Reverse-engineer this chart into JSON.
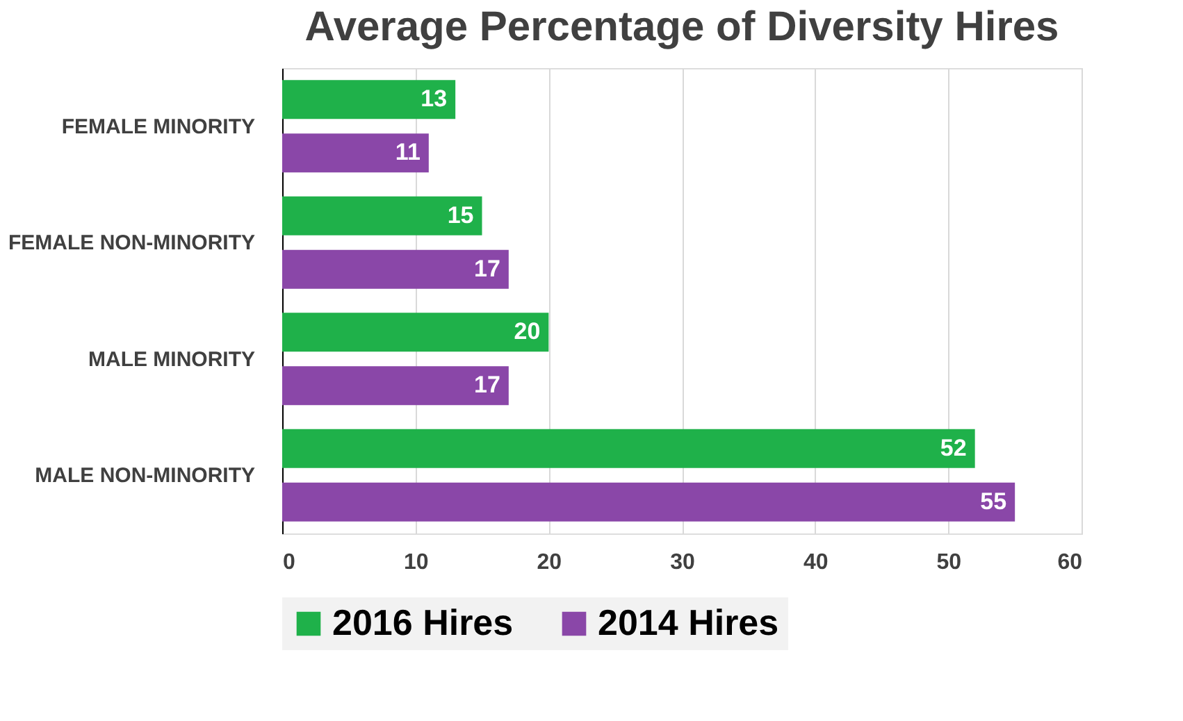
{
  "chart_data": {
    "type": "bar",
    "orientation": "horizontal",
    "title": "Average Percentage of Diversity Hires",
    "categories": [
      "FEMALE MINORITY",
      "FEMALE NON-MINORITY",
      "MALE MINORITY",
      "MALE NON-MINORITY"
    ],
    "series": [
      {
        "name": "2016 Hires",
        "color": "#1fb14a",
        "values": [
          13,
          15,
          20,
          52
        ]
      },
      {
        "name": "2014 Hires",
        "color": "#8a47a8",
        "values": [
          11,
          17,
          17,
          55
        ]
      }
    ],
    "xlim": [
      0,
      60
    ],
    "xticks": [
      0,
      10,
      20,
      30,
      40,
      50,
      60
    ],
    "grid": "x",
    "legend": "bottom",
    "data_labels": true
  }
}
